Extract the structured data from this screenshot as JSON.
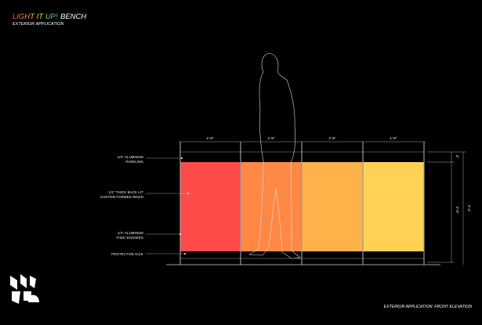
{
  "header": {
    "title_highlight": "LIGHT IT UP!",
    "title_rest": "BENCH",
    "subtitle": "EXTERIOR APPLICATION"
  },
  "callouts": [
    {
      "lines": [
        "1/4\" ALUMINUM",
        "PANELING"
      ]
    },
    {
      "lines": [
        "1/2\" THICK BACK LIT",
        "CUSTOM FORMED RESIN"
      ]
    },
    {
      "lines": [
        "1/4\" ALUMINUM",
        "FINS/ DIVIDERS"
      ]
    },
    {
      "lines": [
        "PROTECTIVE KICK"
      ]
    }
  ],
  "dimensions": {
    "top": [
      "1'-6\"",
      "1'-6\"",
      "1'-6\"",
      "1'-6\""
    ],
    "right": [
      "4\"",
      "2'-0\"",
      "2'-4\""
    ]
  },
  "caption": "EXTERIOR APPLICATION: FRONT ELEVATION"
}
